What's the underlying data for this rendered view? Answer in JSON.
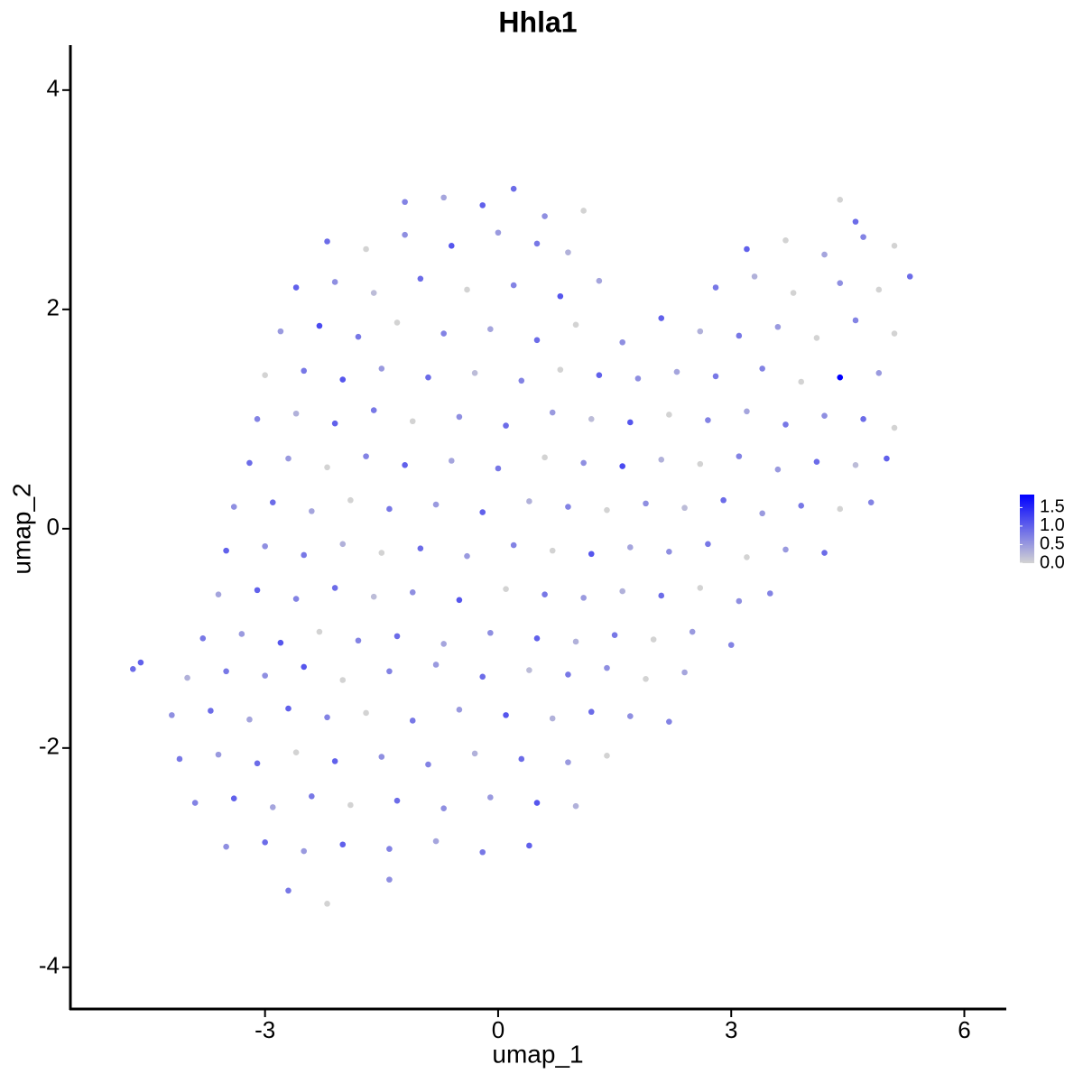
{
  "chart_data": {
    "type": "scatter",
    "title": "Hhla1",
    "x_label": "umap_1",
    "y_label": "umap_2",
    "xlim": [
      -5.505,
      6.54
    ],
    "ylim": [
      -4.38,
      4.41
    ],
    "xticks": [
      -3,
      0,
      3,
      6
    ],
    "yticks": [
      -4,
      -2,
      0,
      2,
      4
    ],
    "low_color": "#d3d3d3",
    "high_color": "#0000ff",
    "color_range": [
      0,
      1.85
    ],
    "color_ticks": [
      {
        "value": 0,
        "label": "0.0"
      },
      {
        "value": 0.5,
        "label": "0.5"
      },
      {
        "value": 1,
        "label": "1.0"
      },
      {
        "value": 1.5,
        "label": "1.5"
      }
    ],
    "x": [
      -1.2,
      -0.7,
      -0.2,
      0.2,
      0.6,
      1.1,
      4.4,
      4.6,
      -2.2,
      -1.7,
      -1.2,
      -0.6,
      0,
      0.5,
      0.9,
      3.2,
      3.7,
      4.2,
      4.7,
      5.1,
      -2.6,
      -2.1,
      -1.6,
      -1.0,
      -0.4,
      0.2,
      0.8,
      1.3,
      2.8,
      3.3,
      3.8,
      4.4,
      4.9,
      5.3,
      -2.8,
      -2.3,
      -1.8,
      -1.3,
      -0.7,
      -0.1,
      0.5,
      1.0,
      1.6,
      2.1,
      2.6,
      3.1,
      3.6,
      4.1,
      4.6,
      5.1,
      -3.0,
      -2.5,
      -2.0,
      -1.5,
      -0.9,
      -0.3,
      0.3,
      0.8,
      1.3,
      1.8,
      2.3,
      2.8,
      3.4,
      3.9,
      4.4,
      4.9,
      -3.1,
      -2.6,
      -2.1,
      -1.6,
      -1.1,
      -0.5,
      0.1,
      0.7,
      1.2,
      1.7,
      2.2,
      2.7,
      3.2,
      3.7,
      4.2,
      4.7,
      5.1,
      -3.2,
      -2.7,
      -2.2,
      -1.7,
      -1.2,
      -0.6,
      0,
      0.6,
      1.1,
      1.6,
      2.1,
      2.6,
      3.1,
      3.6,
      4.1,
      4.6,
      5.0,
      -3.4,
      -2.9,
      -2.4,
      -1.9,
      -1.4,
      -0.8,
      -0.2,
      0.4,
      0.9,
      1.4,
      1.9,
      2.4,
      2.9,
      3.4,
      3.9,
      4.4,
      4.8,
      -3.5,
      -3.0,
      -2.5,
      -2.0,
      -1.5,
      -1.0,
      -0.4,
      0.2,
      0.7,
      1.2,
      1.7,
      2.2,
      2.7,
      3.2,
      3.7,
      4.2,
      -3.6,
      -3.1,
      -2.6,
      -2.1,
      -1.6,
      -1.1,
      -0.5,
      0.1,
      0.6,
      1.1,
      1.6,
      2.1,
      2.6,
      3.1,
      3.5,
      -3.8,
      -3.3,
      -2.8,
      -2.3,
      -1.8,
      -1.3,
      -0.7,
      -0.1,
      0.5,
      1.0,
      1.5,
      2.0,
      2.5,
      3.0,
      -4.7,
      -4.6,
      -4.0,
      -3.5,
      -3.0,
      -2.5,
      -2.0,
      -1.4,
      -0.8,
      -0.2,
      0.4,
      0.9,
      1.4,
      1.9,
      2.4,
      -4.2,
      -3.7,
      -3.2,
      -2.7,
      -2.2,
      -1.7,
      -1.1,
      -0.5,
      0.1,
      0.7,
      1.2,
      1.7,
      2.2,
      -4.1,
      -3.6,
      -3.1,
      -2.6,
      -2.1,
      -1.5,
      -0.9,
      -0.3,
      0.3,
      0.9,
      1.4,
      -3.9,
      -3.4,
      -2.9,
      -2.4,
      -1.9,
      -1.3,
      -0.7,
      -0.1,
      0.5,
      1.0,
      -3.5,
      -3.0,
      -2.5,
      -2.0,
      -1.4,
      -0.8,
      -0.2,
      0.4,
      -2.7,
      -2.2,
      -1.4
    ],
    "y": [
      2.98,
      3.02,
      2.95,
      3.1,
      2.85,
      2.9,
      3.0,
      2.8,
      2.62,
      2.55,
      2.68,
      2.58,
      2.7,
      2.6,
      2.52,
      2.55,
      2.63,
      2.5,
      2.66,
      2.58,
      2.2,
      2.25,
      2.15,
      2.28,
      2.18,
      2.22,
      2.12,
      2.26,
      2.2,
      2.3,
      2.15,
      2.24,
      2.18,
      2.3,
      1.8,
      1.85,
      1.75,
      1.88,
      1.78,
      1.82,
      1.72,
      1.86,
      1.7,
      1.92,
      1.8,
      1.76,
      1.84,
      1.74,
      1.9,
      1.78,
      1.4,
      1.44,
      1.36,
      1.46,
      1.38,
      1.42,
      1.35,
      1.45,
      1.4,
      1.37,
      1.43,
      1.39,
      1.46,
      1.34,
      1.38,
      1.42,
      1.0,
      1.05,
      0.96,
      1.08,
      0.98,
      1.02,
      0.94,
      1.06,
      1.0,
      0.97,
      1.04,
      0.99,
      1.07,
      0.95,
      1.03,
      1.0,
      0.92,
      0.6,
      0.64,
      0.56,
      0.66,
      0.58,
      0.62,
      0.55,
      0.65,
      0.6,
      0.57,
      0.63,
      0.59,
      0.66,
      0.54,
      0.61,
      0.58,
      0.64,
      0.2,
      0.24,
      0.16,
      0.26,
      0.18,
      0.22,
      0.15,
      0.25,
      0.2,
      0.17,
      0.23,
      0.19,
      0.26,
      0.14,
      0.21,
      0.18,
      0.24,
      -0.2,
      -0.16,
      -0.24,
      -0.14,
      -0.22,
      -0.18,
      -0.25,
      -0.15,
      -0.2,
      -0.23,
      -0.17,
      -0.21,
      -0.14,
      -0.26,
      -0.19,
      -0.22,
      -0.6,
      -0.56,
      -0.64,
      -0.54,
      -0.62,
      -0.58,
      -0.65,
      -0.55,
      -0.6,
      -0.63,
      -0.57,
      -0.61,
      -0.54,
      -0.66,
      -0.59,
      -1.0,
      -0.96,
      -1.04,
      -0.94,
      -1.02,
      -0.98,
      -1.05,
      -0.95,
      -1.0,
      -1.03,
      -0.97,
      -1.01,
      -0.94,
      -1.06,
      -1.28,
      -1.22,
      -1.36,
      -1.3,
      -1.34,
      -1.26,
      -1.38,
      -1.3,
      -1.24,
      -1.35,
      -1.29,
      -1.33,
      -1.27,
      -1.37,
      -1.31,
      -1.7,
      -1.66,
      -1.74,
      -1.64,
      -1.72,
      -1.68,
      -1.75,
      -1.65,
      -1.7,
      -1.73,
      -1.67,
      -1.71,
      -1.76,
      -2.1,
      -2.06,
      -2.14,
      -2.04,
      -2.12,
      -2.08,
      -2.15,
      -2.05,
      -2.1,
      -2.13,
      -2.07,
      -2.5,
      -2.46,
      -2.54,
      -2.44,
      -2.52,
      -2.48,
      -2.55,
      -2.45,
      -2.5,
      -2.53,
      -2.9,
      -2.86,
      -2.94,
      -2.88,
      -2.92,
      -2.85,
      -2.95,
      -2.89,
      -3.3,
      -3.42,
      -3.2
    ],
    "expression": [
      0.7,
      0.4,
      1.0,
      0.9,
      0.6,
      0,
      0,
      0.9,
      0.9,
      0,
      0.6,
      1.1,
      0.5,
      0.8,
      0.3,
      1.0,
      0,
      0.4,
      0.7,
      0,
      1.0,
      0.6,
      0.2,
      0.9,
      0,
      0.7,
      1.1,
      0.4,
      0.8,
      0.3,
      0,
      0.6,
      0,
      0.9,
      0.5,
      1.2,
      0.8,
      0,
      0.7,
      0.4,
      0.9,
      0,
      0.6,
      1.0,
      0.3,
      0.8,
      0.5,
      0,
      0.7,
      0,
      0,
      0.8,
      1.1,
      0.5,
      0.9,
      0.2,
      0.7,
      0,
      1.0,
      0.6,
      0.4,
      0.8,
      0.7,
      0,
      1.85,
      0.5,
      0.7,
      0.3,
      1.0,
      0.8,
      0,
      0.6,
      0.9,
      0.5,
      0.2,
      1.1,
      0,
      0.7,
      0.4,
      0.8,
      0.6,
      0.9,
      0,
      0.9,
      0.5,
      0,
      0.7,
      1.0,
      0.4,
      0.8,
      0,
      0.6,
      1.2,
      0.3,
      0,
      0.7,
      0.5,
      0.9,
      0.2,
      1.0,
      0.6,
      0.9,
      0.4,
      0,
      0.8,
      0.5,
      1.0,
      0.3,
      0.7,
      0,
      0.6,
      0.2,
      0.9,
      0.5,
      0.8,
      0,
      0.7,
      1.0,
      0.6,
      0.8,
      0.3,
      0,
      0.9,
      0.5,
      0.7,
      0,
      1.1,
      0.4,
      0.6,
      0.8,
      0,
      0.5,
      0.9,
      0.4,
      1.0,
      0.7,
      0.9,
      0.2,
      0.6,
      1.1,
      0,
      0.8,
      0.5,
      0.3,
      0.9,
      0,
      0.6,
      0.7,
      0.8,
      0.5,
      1.1,
      0,
      0.7,
      0.9,
      0.4,
      0.6,
      1.0,
      0.3,
      0.8,
      0,
      0.5,
      0.7,
      0.9,
      1.0,
      0.3,
      0.8,
      0.6,
      1.1,
      0,
      0.7,
      0.5,
      0.9,
      0.2,
      0.8,
      0.6,
      0,
      0.4,
      0.6,
      0.9,
      0.4,
      1.0,
      0.7,
      0,
      0.8,
      0.5,
      1.1,
      0.3,
      0.9,
      0.6,
      0.7,
      0.8,
      0.5,
      0.9,
      0,
      1.0,
      0.6,
      0.7,
      0.3,
      0.9,
      0.5,
      0,
      0.7,
      1.0,
      0.4,
      0.8,
      0,
      0.9,
      0.6,
      0.5,
      1.1,
      0.3,
      0.6,
      0.9,
      0.5,
      1.0,
      0.7,
      0.4,
      0.8,
      1.0,
      0.8,
      0,
      0.6
    ]
  }
}
